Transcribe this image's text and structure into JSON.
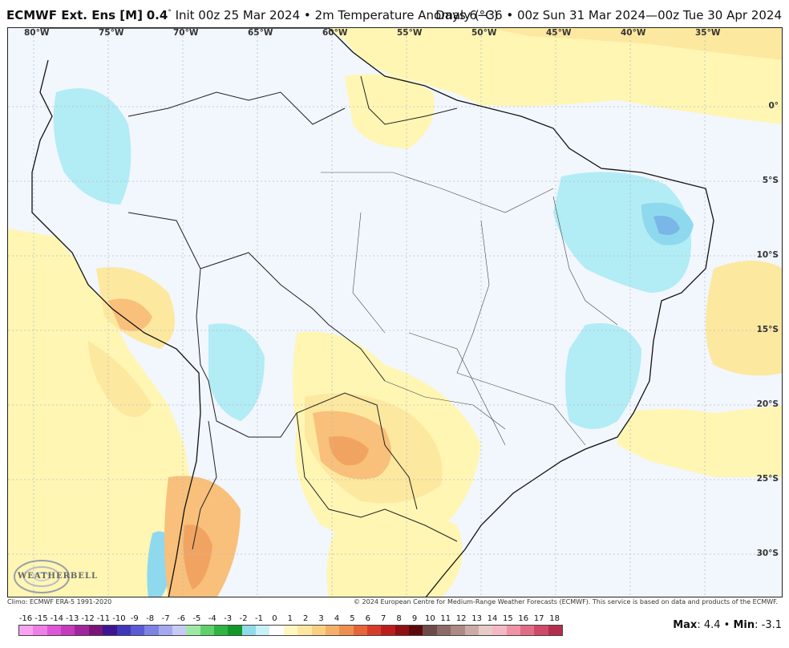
{
  "header": {
    "model": "ECMWF Ext. Ens [M]",
    "resolution": "0.4",
    "init": "Init 00z 25 Mar 2024",
    "separator": "•",
    "variable": "2m Temperature Anomaly (°C)",
    "valid": "Days 6−36 • 00z Sun 31 Mar 2024—00z Tue 30 Apr 2024"
  },
  "map": {
    "longitude_labels": [
      "80°W",
      "75°W",
      "70°W",
      "65°W",
      "60°W",
      "55°W",
      "50°W",
      "45°W",
      "40°W",
      "35°W"
    ],
    "latitude_labels": [
      "0°",
      "5°S",
      "10°S",
      "15°S",
      "20°S",
      "25°S",
      "30°S"
    ],
    "colors": {
      "background": "#f2f6fd",
      "warm_1": "#fff6b4",
      "warm_2": "#fde8a0",
      "warm_3": "#f8c07a",
      "warm_4": "#f1a462",
      "cool_1": "#b2ecf5",
      "cool_2": "#8fd9ee",
      "cool_3": "#7ab7e8",
      "border": "#222222"
    }
  },
  "logo": {
    "text": "WEATHERBELL"
  },
  "footer": {
    "climo": "Climo: ECMWF ERA-5 1991-2020",
    "copyright": "© 2024 European Centre for Medium-Range Weather Forecasts (ECMWF). This service is based on data and products of the ECMWF."
  },
  "colorbar": {
    "labels": [
      "-16",
      "-15",
      "-14",
      "-13",
      "-12",
      "-11",
      "-10",
      "-9",
      "-8",
      "-7",
      "-6",
      "-5",
      "-4",
      "-3",
      "-2",
      "-1",
      "0",
      "1",
      "2",
      "3",
      "4",
      "5",
      "6",
      "7",
      "8",
      "9",
      "10",
      "11",
      "12",
      "13",
      "14",
      "15",
      "16",
      "17",
      "18"
    ],
    "colors": [
      "#f7a3f0",
      "#ee7fe6",
      "#e055d8",
      "#c43bbd",
      "#a0259c",
      "#7a1479",
      "#3d1590",
      "#3e37b9",
      "#5a5bd6",
      "#7d83e3",
      "#a3a9ee",
      "#c6caf5",
      "#9ee8a6",
      "#5fd06c",
      "#2fb341",
      "#139827",
      "#8fdbe9",
      "#c8f1f7",
      "#ffffff",
      "#fff7c2",
      "#fde7a0",
      "#f9cf84",
      "#f4b06a",
      "#ef8f4f",
      "#e7643a",
      "#d73c2b",
      "#bb1d1d",
      "#8f0f12",
      "#5a0a0a",
      "#6e4b48",
      "#8d6a66",
      "#ad8a85",
      "#ccaaa5",
      "#e6cbc7",
      "#f3b8c4",
      "#ee93a6",
      "#e06d86",
      "#cf4a68",
      "#b42e4c"
    ]
  },
  "stats": {
    "max_label": "Max",
    "max_value": ": 4.4",
    "sep": " • ",
    "min_label": "Min",
    "min_value": ": -3.1"
  }
}
